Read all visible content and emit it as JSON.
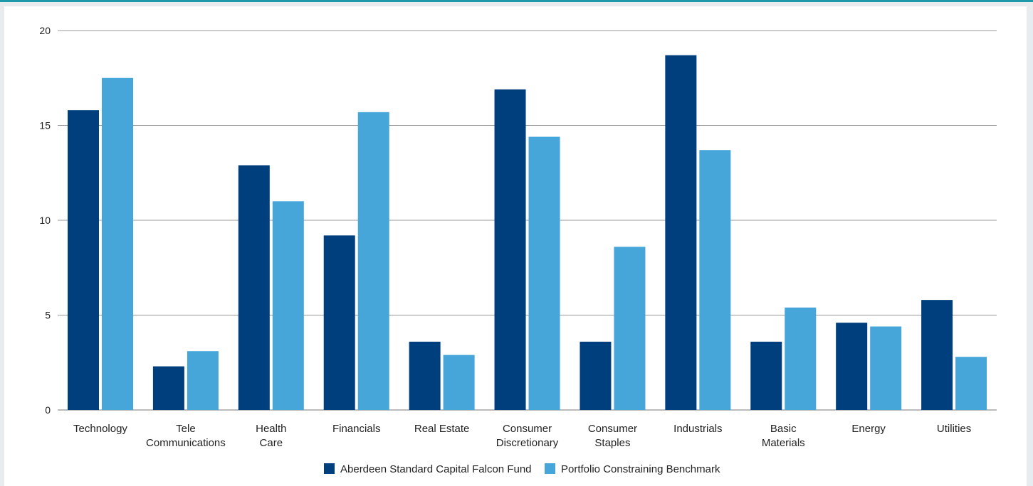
{
  "colors": {
    "series1": "#003f7d",
    "series2": "#46a5d9",
    "frame_accent": "#1c9aa7",
    "grid": "#9a9a9a"
  },
  "chart_data": {
    "type": "bar",
    "title": "",
    "xlabel": "",
    "ylabel": "",
    "ylim": [
      0,
      20
    ],
    "yticks": [
      0,
      5,
      10,
      15,
      20
    ],
    "grid": true,
    "legend_position": "bottom-center",
    "categories": [
      [
        "Technology"
      ],
      [
        "Tele",
        "Communications"
      ],
      [
        "Health",
        "Care"
      ],
      [
        "Financials"
      ],
      [
        "Real Estate"
      ],
      [
        "Consumer",
        "Discretionary"
      ],
      [
        "Consumer",
        "Staples"
      ],
      [
        "Industrials"
      ],
      [
        "Basic",
        "Materials"
      ],
      [
        "Energy"
      ],
      [
        "Utilities"
      ]
    ],
    "series": [
      {
        "name": "Aberdeen Standard  Capital Falcon Fund",
        "values": [
          15.8,
          2.3,
          12.9,
          9.2,
          3.6,
          16.9,
          3.6,
          18.7,
          3.6,
          4.6,
          5.8
        ]
      },
      {
        "name": "Portfolio Constraining Benchmark",
        "values": [
          17.5,
          3.1,
          11.0,
          15.7,
          2.9,
          14.4,
          8.6,
          13.7,
          5.4,
          4.4,
          2.8
        ]
      }
    ]
  }
}
